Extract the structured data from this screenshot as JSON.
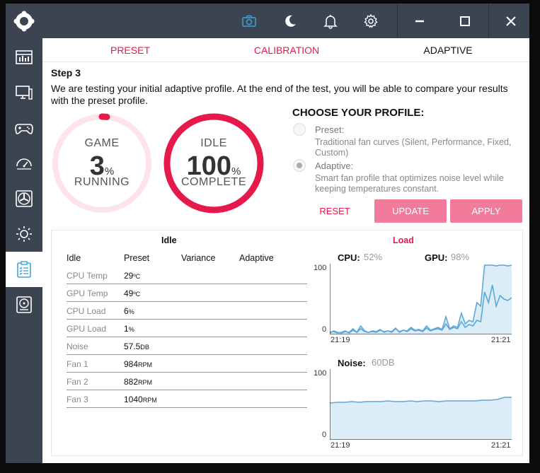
{
  "topbar": {
    "icons": [
      "camera-icon",
      "moon-icon",
      "bell-icon",
      "gear-icon"
    ],
    "window_controls": [
      "minimize-icon",
      "maximize-icon",
      "close-icon"
    ]
  },
  "sidebar": {
    "items": [
      "dashboard-icon",
      "monitor-icon",
      "gamepad-icon",
      "gauge-icon",
      "fan-icon",
      "brightness-icon",
      "checklist-icon",
      "disk-icon"
    ],
    "active_index": 6
  },
  "tabs": [
    {
      "label": "PRESET",
      "state": "red"
    },
    {
      "label": "CALIBRATION",
      "state": "red"
    },
    {
      "label": "ADAPTIVE",
      "state": "active"
    }
  ],
  "step": {
    "title": "Step 3",
    "description": "We are testing your initial adaptive profile. At the end of the test, you will be able to compare your results with the preset profile."
  },
  "rings": [
    {
      "top_label": "GAME",
      "value": "3",
      "unit": "%",
      "bottom_label": "RUNNING",
      "progress": 0.03
    },
    {
      "top_label": "IDLE",
      "value": "100",
      "unit": "%",
      "bottom_label": "COMPLETE",
      "progress": 1.0
    }
  ],
  "profile": {
    "heading": "CHOOSE YOUR PROFILE:",
    "options": [
      {
        "title": "Preset:",
        "desc": "Traditional fan curves (Silent, Performance, Fixed, Custom)",
        "selected": false
      },
      {
        "title": "Adaptive:",
        "desc": "Smart fan profile that optimizes noise level while keeping temperatures constant.",
        "selected": true
      }
    ],
    "reset_label": "RESET",
    "update_label": "UPDATE",
    "apply_label": "APPLY"
  },
  "table": {
    "section_title": "Idle",
    "headers": [
      "Idle",
      "Preset",
      "Variance",
      "Adaptive"
    ],
    "rows": [
      {
        "label": "CPU Temp",
        "value": "29",
        "unit": "ºC"
      },
      {
        "label": "GPU Temp",
        "value": "49",
        "unit": "ºC"
      },
      {
        "label": "CPU Load",
        "value": "6",
        "unit": "%"
      },
      {
        "label": "GPU Load",
        "value": "1",
        "unit": "%"
      },
      {
        "label": "Noise",
        "value": "57.5",
        "unit": "DB"
      },
      {
        "label": "Fan 1",
        "value": "984",
        "unit": "RPM"
      },
      {
        "label": "Fan 2",
        "value": "882",
        "unit": "RPM"
      },
      {
        "label": "Fan 3",
        "value": "1040",
        "unit": "RPM"
      }
    ]
  },
  "load": {
    "section_title": "Load",
    "cpu_label": "CPU:",
    "cpu_value": "52%",
    "gpu_label": "GPU:",
    "gpu_value": "98%",
    "noise_label": "Noise:",
    "noise_value": "60DB"
  },
  "colors": {
    "accent": "#e5194a",
    "ring_bg": "#fde4ea",
    "button": "#f27a9a",
    "chart_line": "#5aa9d6",
    "chart_fill": "#d4e8f6",
    "sidebar": "#3d4451"
  },
  "chart_data": [
    {
      "type": "line",
      "title": "CPU / GPU load",
      "x_start": "21:19",
      "x_end": "21:21",
      "ylim": [
        0,
        100
      ],
      "y_ticks": [
        "100",
        "0"
      ],
      "series": [
        {
          "name": "GPU",
          "values": [
            2,
            5,
            3,
            2,
            4,
            3,
            8,
            3,
            12,
            5,
            3,
            4,
            3,
            6,
            4,
            5,
            3,
            8,
            4,
            6,
            5,
            10,
            6,
            7,
            5,
            12,
            6,
            8,
            10,
            7,
            25,
            8,
            12,
            10,
            30,
            15,
            20,
            18,
            45,
            40,
            98,
            98,
            98,
            97,
            98,
            98,
            97,
            98
          ]
        },
        {
          "name": "CPU",
          "values": [
            3,
            4,
            2,
            3,
            5,
            2,
            6,
            3,
            8,
            4,
            3,
            5,
            4,
            7,
            3,
            5,
            4,
            9,
            3,
            6,
            4,
            8,
            5,
            6,
            4,
            9,
            5,
            7,
            8,
            6,
            15,
            7,
            10,
            8,
            18,
            10,
            14,
            12,
            20,
            18,
            60,
            45,
            70,
            40,
            55,
            50,
            48,
            52
          ]
        }
      ]
    },
    {
      "type": "area",
      "title": "Noise",
      "x_start": "21:19",
      "x_end": "21:21",
      "ylim": [
        0,
        100
      ],
      "y_ticks": [
        "100",
        "0"
      ],
      "series": [
        {
          "name": "Noise",
          "values": [
            52,
            53,
            53,
            54,
            53,
            54,
            54,
            54,
            55,
            54,
            54,
            55,
            54,
            55,
            55,
            54,
            55,
            55,
            55,
            55,
            55,
            56,
            56,
            57,
            60,
            60
          ]
        }
      ]
    }
  ]
}
